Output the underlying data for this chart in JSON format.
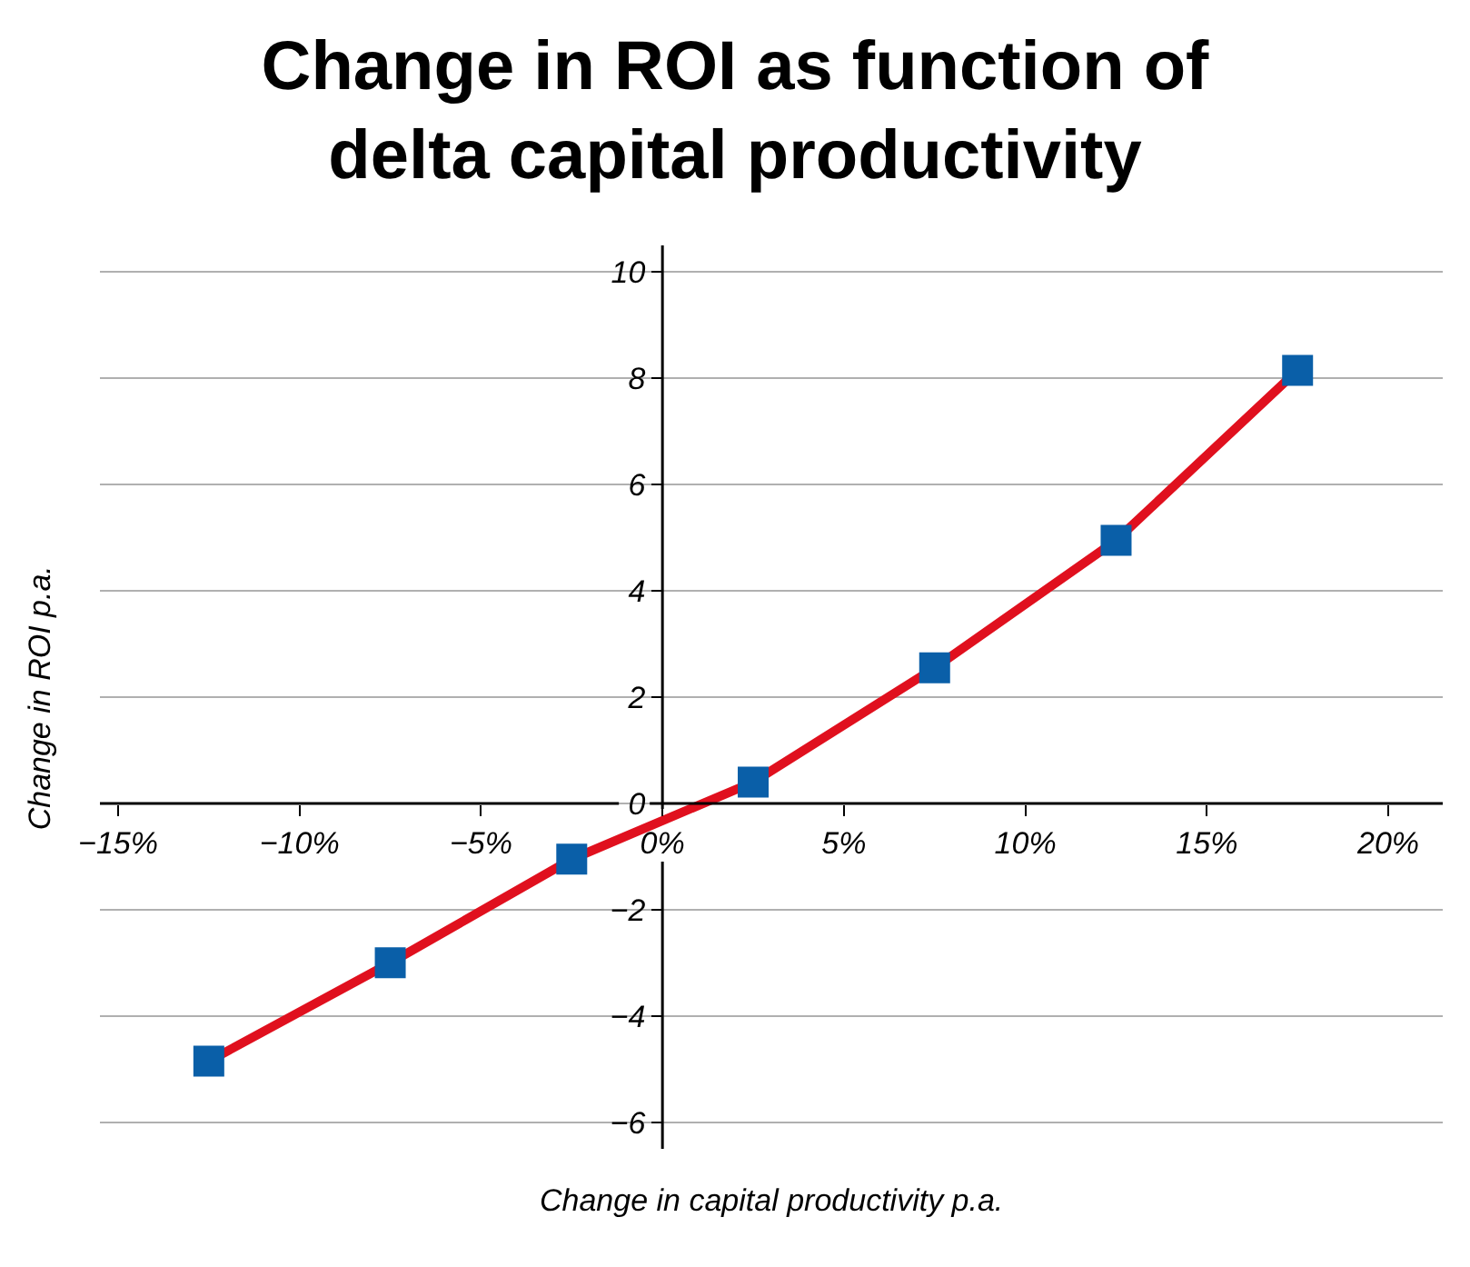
{
  "chart_data": {
    "type": "line",
    "title": "Change in ROI as function of\ndelta capital productivity",
    "xlabel": "Change in capital productivity p.a.",
    "ylabel": "Change in ROI p.a.",
    "x": [
      -12.5,
      -7.5,
      -2.5,
      2.5,
      7.5,
      12.5,
      17.5
    ],
    "series": [
      {
        "color": "#e0101e",
        "colors": [
          "#0a5fa8",
          "#0a5fa8",
          "#0a5fa8",
          "#0a5fa8",
          "#0a5fa8",
          "#0a5fa8",
          "#0a5fa8"
        ],
        "values": [
          -4.85,
          -3.0,
          -1.05,
          0.4,
          2.55,
          4.95,
          8.15
        ]
      }
    ],
    "marker": "square",
    "line_style": "solid",
    "grid": "y",
    "xlim": [
      -15.5,
      21.5
    ],
    "ylim": [
      -6.5,
      10.5
    ],
    "xticks": [
      {
        "value": -15,
        "label": "−15%"
      },
      {
        "value": -10,
        "label": "−10%"
      },
      {
        "value": -5,
        "label": "−5%"
      },
      {
        "value": 0,
        "label": "0%"
      },
      {
        "value": 5,
        "label": "5%"
      },
      {
        "value": 10,
        "label": "10%"
      },
      {
        "value": 15,
        "label": "15%"
      },
      {
        "value": 20,
        "label": "20%"
      }
    ],
    "yticks": [
      {
        "value": -6,
        "label": "−6"
      },
      {
        "value": -4,
        "label": "−4"
      },
      {
        "value": -2,
        "label": "−2"
      },
      0,
      2,
      4,
      6,
      8,
      10
    ]
  }
}
